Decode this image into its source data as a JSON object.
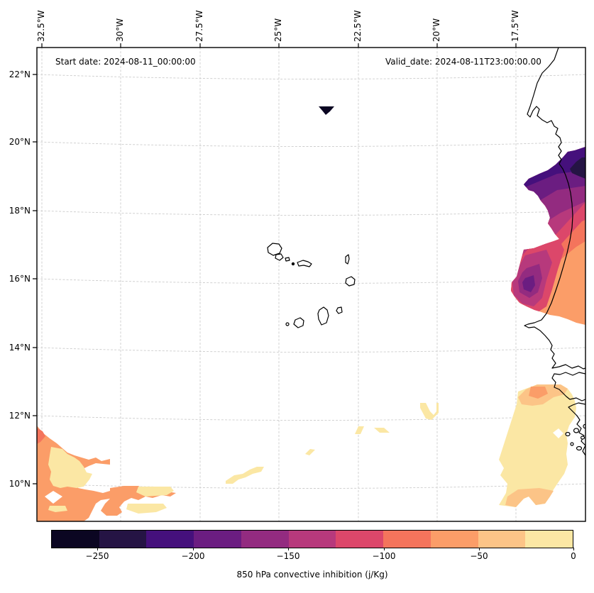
{
  "annotations": {
    "start_date": "Start date: 2024-08-11_00:00:00",
    "valid_date": "Valid_date: 2024-08-11T23:00:00.00"
  },
  "chart_data": {
    "type": "heatmap",
    "subtype": "filled-contour-map",
    "title": "",
    "colorbar": {
      "label": "850 hPa convective inhibition (j/Kg)",
      "orientation": "horizontal",
      "range": [
        -275,
        0
      ],
      "level_step": 25,
      "n_segments": 11,
      "segment_colors": [
        "#0b0622",
        "#251444",
        "#45107c",
        "#6b1d81",
        "#932b80",
        "#b7397c",
        "#dc476a",
        "#f4745c",
        "#fb9d68",
        "#fcc487",
        "#fbe7a4"
      ],
      "tick_values": [
        -250,
        -200,
        -150,
        -100,
        -50,
        0
      ],
      "tick_labels": [
        "−250",
        "−200",
        "−150",
        "−100",
        "−50",
        "0"
      ]
    },
    "x_tick_labels": [
      "32.5°W",
      "30°W",
      "27.5°W",
      "25°W",
      "22.5°W",
      "20°W",
      "17.5°W"
    ],
    "y_tick_labels": [
      "22°N",
      "20°N",
      "18°N",
      "16°N",
      "14°N",
      "12°N",
      "10°N"
    ],
    "map_extent": {
      "lon_min": -32.7,
      "lon_max": -15.2,
      "lat_min": 9.0,
      "lat_max": 22.8
    },
    "grid": {
      "lon_step_deg": 2.5,
      "lat_step_deg": 2.0,
      "style": "light dashed"
    },
    "geography": [
      "West African coastline (Mauritania, Senegal, Gambia, Guinea-Bissau)",
      "Cape Verde islands",
      "Gambia and Casamance rivers",
      "Bijagos islands"
    ],
    "features": [
      {
        "area": "West African coast 15–20°N near map right edge",
        "value_bins": "−25 down to −250 j/Kg, darkest core ≈ −225 to −250 near 19–19.5°N"
      },
      {
        "area": "secondary minimum pocket ≈ 16°N, 18.5–19°W",
        "value_bins": "core ≈ −175 to −200"
      },
      {
        "area": "isolated spot ≈ 21°N, 23.7°W",
        "value_bins": "≤ −250"
      },
      {
        "area": "Senegal / Gambia interior 9.5–13°N",
        "value_bins": "0 to −50"
      },
      {
        "area": "southwest corner ≈ 9–11.7°N west of 31°W",
        "value_bins": "0 to −100 with small ≈ −175 spot at edge"
      },
      {
        "area": "scattered small patches 10–12.5°N over open ocean",
        "value_bins": "0 to −25"
      }
    ]
  }
}
